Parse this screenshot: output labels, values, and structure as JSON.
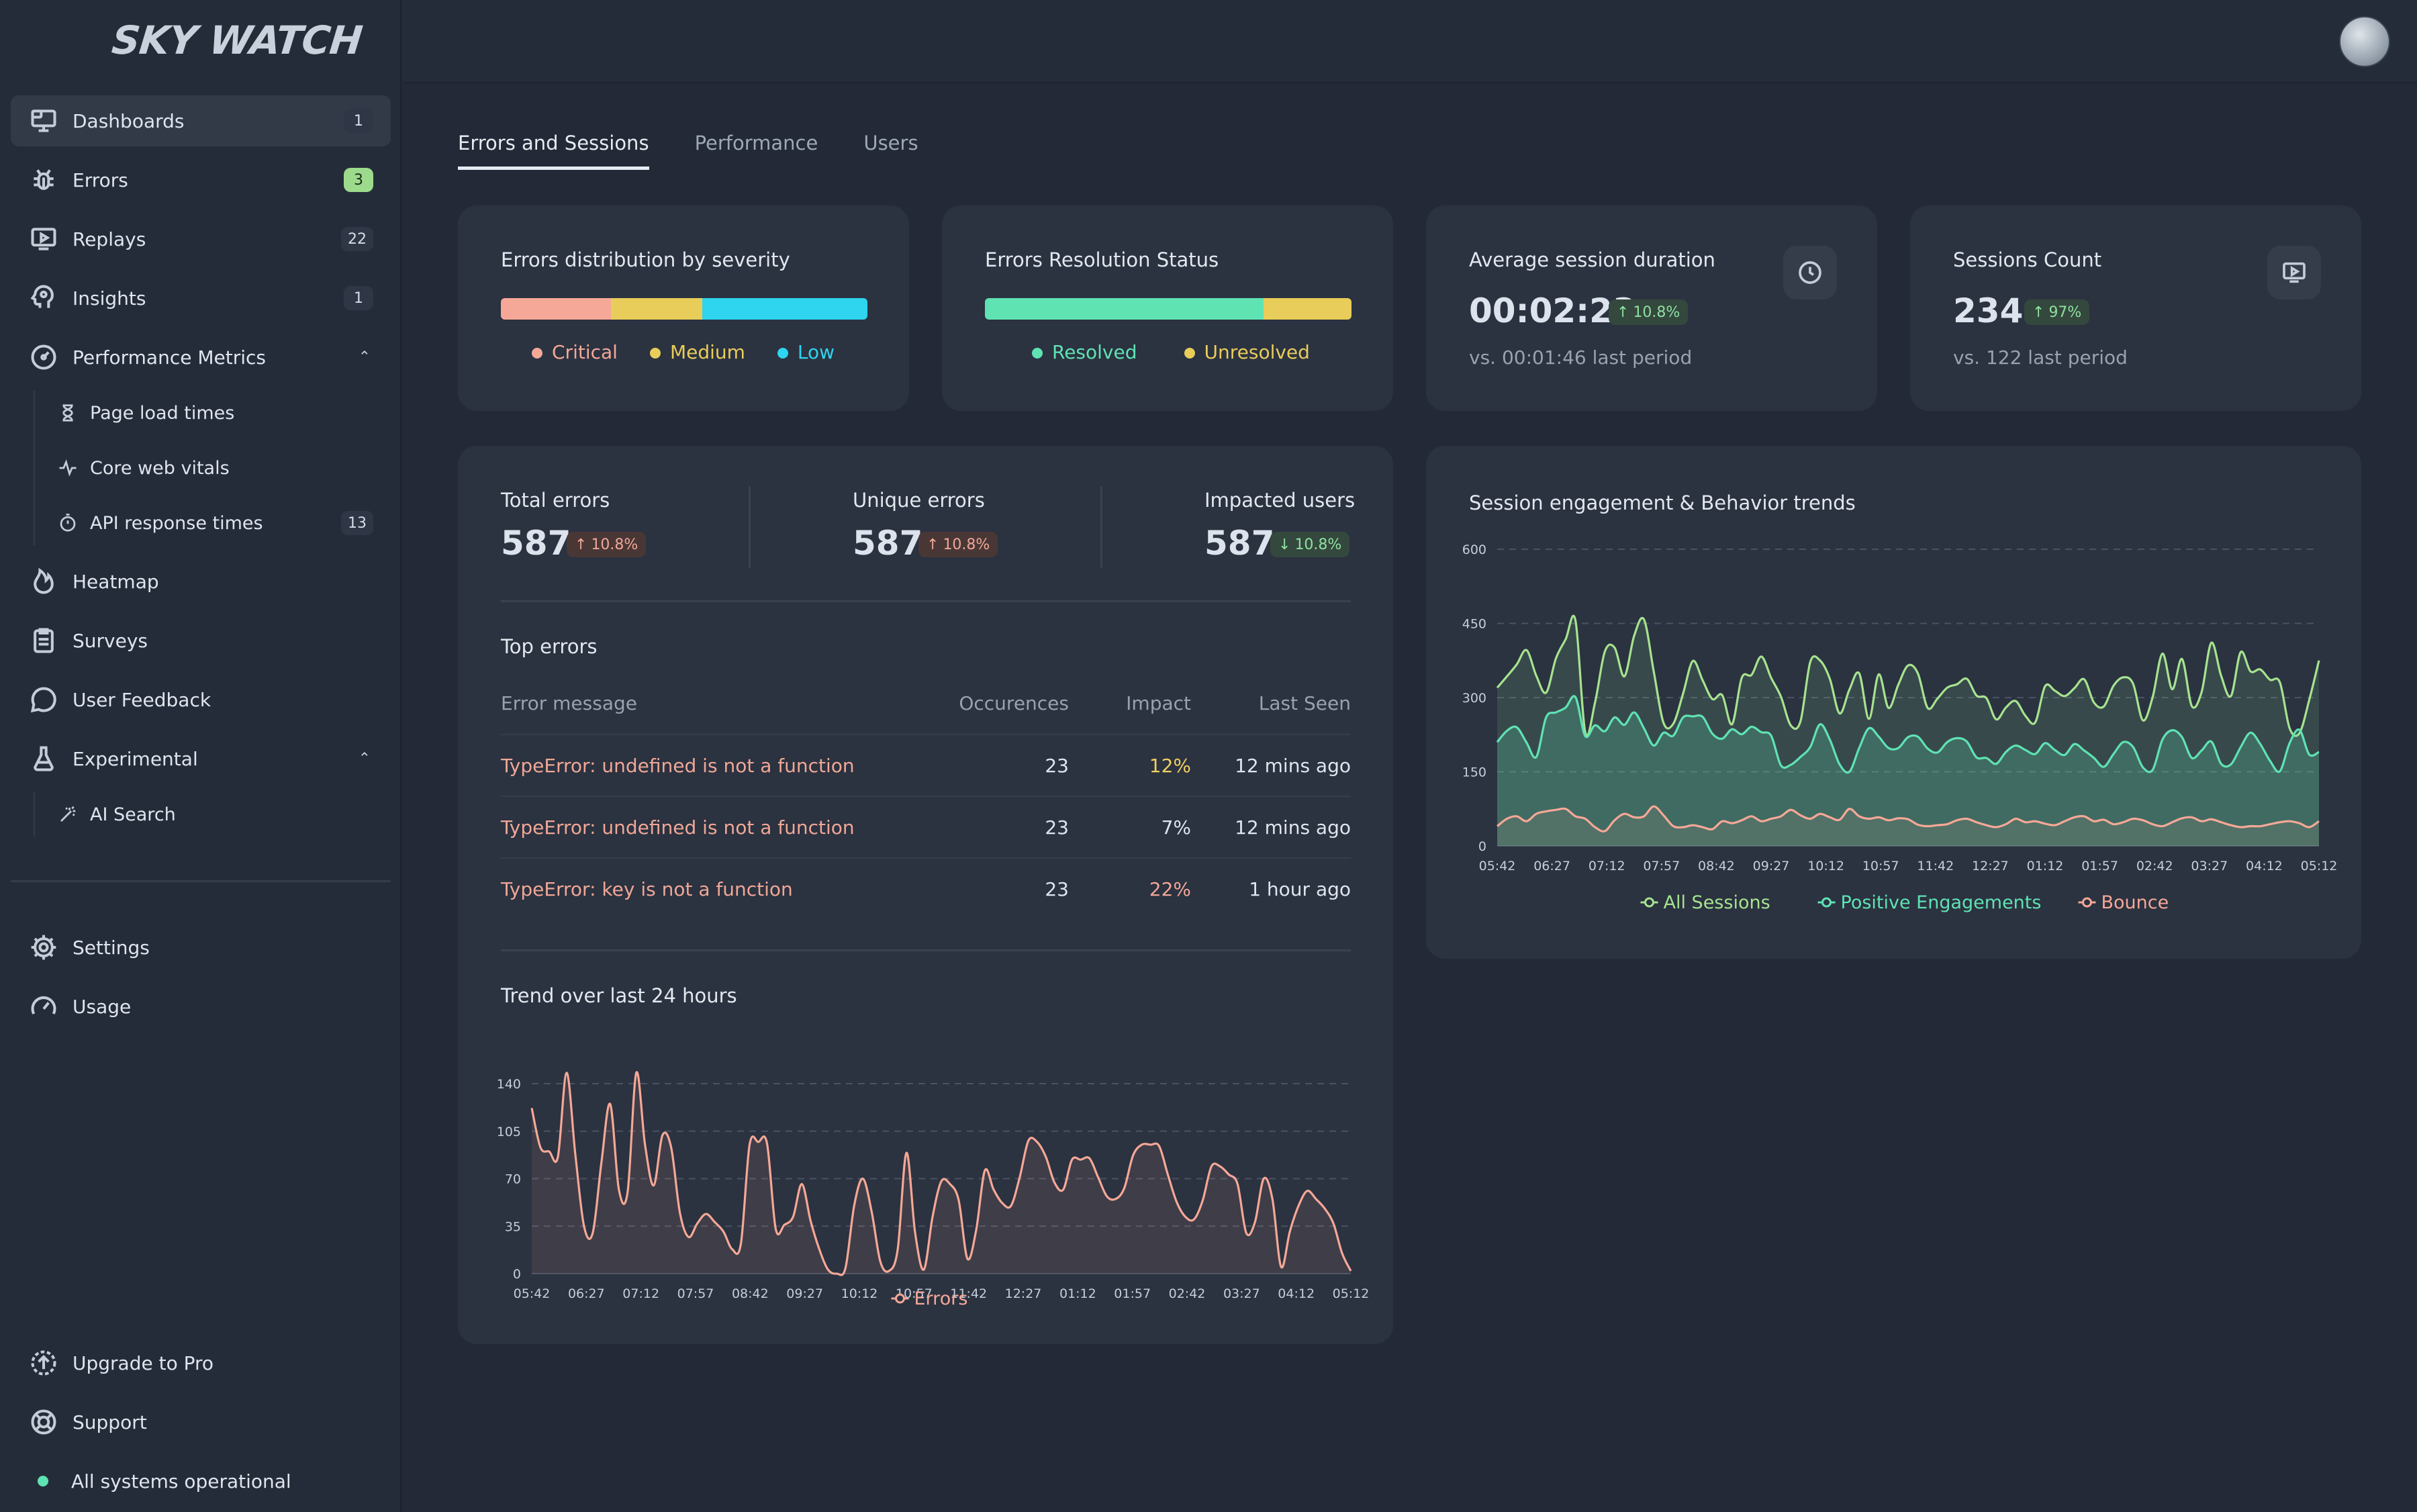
{
  "app": {
    "logo": "SKY WATCH"
  },
  "sidebar": {
    "items": [
      {
        "label": "Dashboards",
        "badge": "1"
      },
      {
        "label": "Errors",
        "badge": "3"
      },
      {
        "label": "Replays",
        "badge": "22"
      },
      {
        "label": "Insights",
        "badge": "1"
      },
      {
        "label": "Performance Metrics"
      }
    ],
    "perf_sub": [
      {
        "label": "Page load times"
      },
      {
        "label": "Core web vitals"
      },
      {
        "label": "API response times",
        "badge": "13"
      }
    ],
    "items2": [
      {
        "label": "Heatmap"
      },
      {
        "label": "Surveys"
      },
      {
        "label": "User Feedback"
      },
      {
        "label": "Experimental"
      }
    ],
    "exp_sub": [
      {
        "label": "AI Search"
      }
    ],
    "bottom": [
      {
        "label": "Settings"
      },
      {
        "label": "Usage"
      }
    ],
    "footer": [
      {
        "label": "Upgrade to Pro"
      },
      {
        "label": "Support"
      }
    ],
    "status": "All systems operational"
  },
  "tabs": [
    {
      "label": "Errors and Sessions",
      "active": true
    },
    {
      "label": "Performance"
    },
    {
      "label": "Users"
    }
  ],
  "severity": {
    "title": "Errors distribution by severity",
    "segments": [
      {
        "label": "Critical",
        "share": 0.3,
        "color": "#f5a897"
      },
      {
        "label": "Medium",
        "share": 0.25,
        "color": "#e9cd5a"
      },
      {
        "label": "Low",
        "share": 0.45,
        "color": "#2fd4ef"
      }
    ]
  },
  "resolution": {
    "title": "Errors Resolution Status",
    "segments": [
      {
        "label": "Resolved",
        "share": 0.76,
        "color": "#5fe3b3"
      },
      {
        "label": "Unresolved",
        "share": 0.24,
        "color": "#e9cd5a"
      }
    ]
  },
  "avg_session": {
    "title": "Average session duration",
    "value": "00:02:23",
    "change": "10.8%",
    "compare": "vs. 00:01:46 last period"
  },
  "sessions_count": {
    "title": "Sessions Count",
    "value": "234",
    "change": "97%",
    "compare": "vs. 122 last period"
  },
  "stats": [
    {
      "label": "Total errors",
      "value": "587",
      "change": "10.8%",
      "dir": "up"
    },
    {
      "label": "Unique errors",
      "value": "587",
      "change": "10.8%",
      "dir": "up"
    },
    {
      "label": "Impacted users",
      "value": "587",
      "change": "10.8%",
      "dir": "down"
    }
  ],
  "top_errors": {
    "title": "Top errors",
    "columns": [
      "Error message",
      "Occurences",
      "Impact",
      "Last Seen"
    ],
    "rows": [
      {
        "message": "TypeError: undefined is not a function",
        "occ": "23",
        "impact": "12%",
        "seen": "12 mins ago",
        "level": "y"
      },
      {
        "message": "TypeError: undefined is not a function",
        "occ": "23",
        "impact": "7%",
        "seen": "12 mins ago",
        "level": "n"
      },
      {
        "message": "TypeError: key is not a function",
        "occ": "23",
        "impact": "22%",
        "seen": "1 hour ago",
        "level": "r"
      }
    ]
  },
  "chart_data": [
    {
      "type": "area",
      "title": "Trend over last 24 hours",
      "xticks": [
        "05:42",
        "06:27",
        "07:12",
        "07:57",
        "08:42",
        "09:27",
        "10:12",
        "10:57",
        "11:42",
        "12:27",
        "01:12",
        "01:57",
        "02:42",
        "03:27",
        "04:12",
        "05:12"
      ],
      "yticks": [
        0,
        35,
        70,
        105,
        140
      ],
      "ylim": [
        0,
        140
      ],
      "series": [
        {
          "name": "Errors",
          "color": "#f5a897",
          "values": [
            122,
            93,
            90,
            86,
            148,
            88,
            35,
            30,
            82,
            125,
            62,
            60,
            148,
            95,
            65,
            102,
            93,
            45,
            27,
            37,
            44,
            38,
            31,
            18,
            22,
            95,
            97,
            96,
            33,
            36,
            42,
            66,
            39,
            18,
            3,
            0,
            4,
            50,
            70,
            46,
            9,
            2,
            18,
            89,
            30,
            3,
            42,
            68,
            66,
            54,
            11,
            32,
            76,
            62,
            52,
            50,
            71,
            98,
            97,
            86,
            67,
            62,
            84,
            84,
            85,
            71,
            57,
            55,
            63,
            87,
            95,
            95,
            94,
            73,
            53,
            42,
            40,
            54,
            79,
            79,
            73,
            66,
            30,
            38,
            70,
            55,
            5,
            31,
            50,
            61,
            55,
            48,
            37,
            15,
            2
          ]
        }
      ]
    },
    {
      "type": "area",
      "title": "Session engagement & Behavior trends",
      "xticks": [
        "05:42",
        "06:27",
        "07:12",
        "07:57",
        "08:42",
        "09:27",
        "10:12",
        "10:57",
        "11:42",
        "12:27",
        "01:12",
        "01:57",
        "02:42",
        "03:27",
        "04:12",
        "05:12"
      ],
      "yticks": [
        0,
        150,
        300,
        450,
        600
      ],
      "ylim": [
        0,
        600
      ],
      "series": [
        {
          "name": "All Sessions",
          "color": "#a6e38f",
          "values": [
            320,
            343,
            367,
            396,
            344,
            310,
            379,
            418,
            456,
            230,
            290,
            393,
            401,
            343,
            425,
            458,
            353,
            249,
            247,
            308,
            374,
            335,
            297,
            305,
            246,
            340,
            346,
            383,
            340,
            302,
            244,
            252,
            372,
            375,
            338,
            268,
            316,
            349,
            257,
            347,
            279,
            326,
            365,
            349,
            279,
            298,
            320,
            327,
            338,
            304,
            299,
            256,
            280,
            293,
            263,
            250,
            323,
            314,
            303,
            319,
            337,
            290,
            282,
            324,
            341,
            328,
            254,
            301,
            389,
            317,
            378,
            283,
            311,
            411,
            344,
            303,
            392,
            353,
            357,
            336,
            331,
            238,
            228,
            295,
            375
          ]
        },
        {
          "name": "Positive Engagements",
          "color": "#5fe3b3",
          "values": [
            210,
            233,
            240,
            209,
            180,
            260,
            270,
            280,
            301,
            222,
            244,
            232,
            260,
            245,
            270,
            238,
            203,
            229,
            223,
            260,
            262,
            261,
            227,
            217,
            236,
            226,
            241,
            230,
            223,
            163,
            164,
            180,
            200,
            246,
            215,
            165,
            150,
            198,
            238,
            221,
            198,
            198,
            220,
            221,
            197,
            189,
            210,
            218,
            211,
            179,
            178,
            166,
            190,
            203,
            194,
            186,
            208,
            194,
            184,
            206,
            193,
            178,
            160,
            186,
            210,
            200,
            159,
            154,
            215,
            234,
            220,
            178,
            193,
            211,
            166,
            165,
            200,
            229,
            206,
            172,
            151,
            208,
            235,
            185,
            190
          ]
        },
        {
          "name": "Bounce",
          "color": "#f5a897",
          "values": [
            40,
            55,
            60,
            50,
            65,
            70,
            73,
            75,
            60,
            55,
            38,
            30,
            52,
            65,
            58,
            60,
            80,
            62,
            40,
            38,
            42,
            38,
            34,
            50,
            46,
            52,
            60,
            50,
            55,
            60,
            73,
            62,
            55,
            65,
            58,
            53,
            75,
            60,
            55,
            58,
            52,
            56,
            54,
            43,
            40,
            42,
            44,
            52,
            55,
            48,
            42,
            38,
            44,
            55,
            48,
            50,
            45,
            42,
            50,
            58,
            60,
            50,
            53,
            44,
            48,
            55,
            52,
            44,
            40,
            48,
            56,
            58,
            50,
            54,
            48,
            42,
            38,
            40,
            40,
            44,
            48,
            50,
            46,
            38,
            50
          ]
        }
      ]
    }
  ]
}
